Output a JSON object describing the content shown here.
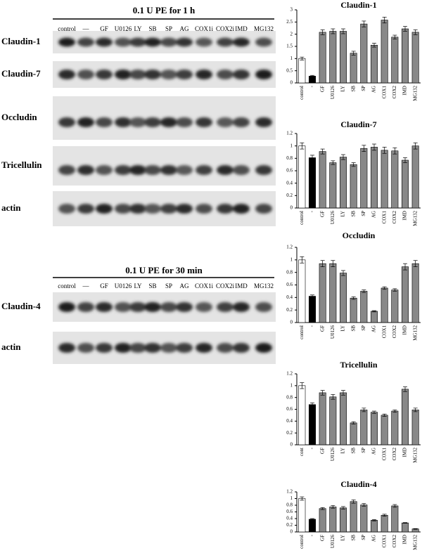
{
  "blots": [
    {
      "title": "0.1 U PE for 1 h",
      "lanes": [
        "control",
        "—",
        "GF",
        "U0126",
        "LY",
        "SB",
        "SP",
        "AG",
        "COX1i",
        "COX2i",
        "IMD",
        "MG132"
      ],
      "rows": [
        "Claudin-1",
        "Claudin-7",
        "Occludin",
        "Tricellulin",
        "actin"
      ]
    },
    {
      "title": "0.1 U PE  for 30 min",
      "lanes": [
        "control",
        "—",
        "GF",
        "U0126",
        "LY",
        "SB",
        "SP",
        "AG",
        "COX1i",
        "COX2i",
        "IMD",
        "MG132"
      ],
      "rows": [
        "Claudin-4",
        "actin"
      ]
    }
  ],
  "chart_data": [
    {
      "type": "bar",
      "title": "Claudin-1",
      "categories": [
        "control",
        "-",
        "GF",
        "U0126",
        "LY",
        "SB",
        "SP",
        "AG",
        "COX1",
        "COX2",
        "IMD",
        "MG132"
      ],
      "values": [
        1.0,
        0.28,
        2.08,
        2.12,
        2.12,
        1.22,
        2.42,
        1.55,
        2.58,
        1.88,
        2.22,
        2.08
      ],
      "errors": [
        0.06,
        0.03,
        0.1,
        0.1,
        0.1,
        0.08,
        0.12,
        0.08,
        0.12,
        0.08,
        0.1,
        0.1
      ],
      "colors": [
        "#ffffff",
        "#000000",
        "#888888",
        "#888888",
        "#888888",
        "#888888",
        "#888888",
        "#888888",
        "#888888",
        "#888888",
        "#888888",
        "#888888"
      ],
      "ylim": [
        0,
        3
      ],
      "yticks": [
        0,
        0.5,
        1,
        1.5,
        2,
        2.5,
        3
      ]
    },
    {
      "type": "bar",
      "title": "Claudin-7",
      "categories": [
        "control",
        "-",
        "GF",
        "U0126",
        "LY",
        "SB",
        "SP",
        "AG",
        "COX1",
        "COX2",
        "IMD",
        "MG132"
      ],
      "values": [
        1.0,
        0.81,
        0.91,
        0.73,
        0.82,
        0.7,
        0.96,
        0.98,
        0.93,
        0.92,
        0.77,
        1.0
      ],
      "errors": [
        0.05,
        0.04,
        0.04,
        0.03,
        0.04,
        0.03,
        0.05,
        0.05,
        0.05,
        0.05,
        0.04,
        0.05
      ],
      "colors": [
        "#ffffff",
        "#000000",
        "#888888",
        "#888888",
        "#888888",
        "#888888",
        "#888888",
        "#888888",
        "#888888",
        "#888888",
        "#888888",
        "#888888"
      ],
      "ylim": [
        0,
        1.2
      ],
      "yticks": [
        0,
        0.2,
        0.4,
        0.6,
        0.8,
        1,
        1.2
      ]
    },
    {
      "type": "bar",
      "title": "Occludin",
      "categories": [
        "control",
        "-",
        "GF",
        "U0126",
        "LY",
        "SB",
        "SP",
        "AG",
        "COX1",
        "COX2",
        "IMD",
        "MG132"
      ],
      "values": [
        1.0,
        0.42,
        0.94,
        0.94,
        0.79,
        0.39,
        0.5,
        0.18,
        0.55,
        0.52,
        0.89,
        0.94
      ],
      "errors": [
        0.05,
        0.02,
        0.05,
        0.05,
        0.04,
        0.02,
        0.02,
        0.01,
        0.02,
        0.02,
        0.05,
        0.05
      ],
      "colors": [
        "#ffffff",
        "#000000",
        "#888888",
        "#888888",
        "#888888",
        "#888888",
        "#888888",
        "#888888",
        "#888888",
        "#888888",
        "#888888",
        "#888888"
      ],
      "ylim": [
        0,
        1.2
      ],
      "yticks": [
        0,
        0.2,
        0.4,
        0.6,
        0.8,
        1,
        1.2
      ]
    },
    {
      "type": "bar",
      "title": "Tricellulin",
      "categories": [
        "cont",
        "-",
        "GF",
        "U0126",
        "LY",
        "SB",
        "SP",
        "AG",
        "COX1",
        "COX2",
        "IMD",
        "MG132"
      ],
      "values": [
        1.0,
        0.68,
        0.88,
        0.81,
        0.88,
        0.37,
        0.59,
        0.55,
        0.5,
        0.57,
        0.94,
        0.59
      ],
      "errors": [
        0.05,
        0.03,
        0.04,
        0.04,
        0.04,
        0.02,
        0.03,
        0.02,
        0.02,
        0.02,
        0.04,
        0.03
      ],
      "colors": [
        "#ffffff",
        "#000000",
        "#888888",
        "#888888",
        "#888888",
        "#888888",
        "#888888",
        "#888888",
        "#888888",
        "#888888",
        "#888888",
        "#888888"
      ],
      "ylim": [
        0,
        1.2
      ],
      "yticks": [
        0,
        0.2,
        0.4,
        0.6,
        0.8,
        1,
        1.2
      ]
    },
    {
      "type": "bar",
      "title": "Claudin-4",
      "categories": [
        "control",
        "-",
        "GF",
        "U0126",
        "LY",
        "SB",
        "SP",
        "AG",
        "COX1",
        "COX2",
        "IMD",
        "MG132"
      ],
      "values": [
        1.0,
        0.38,
        0.7,
        0.75,
        0.72,
        0.91,
        0.81,
        0.35,
        0.5,
        0.78,
        0.27,
        0.09
      ],
      "errors": [
        0.05,
        0.02,
        0.03,
        0.04,
        0.04,
        0.05,
        0.04,
        0.02,
        0.03,
        0.04,
        0.01,
        0.01
      ],
      "colors": [
        "#ffffff",
        "#000000",
        "#888888",
        "#888888",
        "#888888",
        "#888888",
        "#888888",
        "#888888",
        "#888888",
        "#888888",
        "#888888",
        "#888888"
      ],
      "ylim": [
        0,
        1.2
      ],
      "yticks": [
        0,
        0.2,
        0.4,
        0.6,
        0.8,
        1,
        1.2
      ]
    }
  ]
}
